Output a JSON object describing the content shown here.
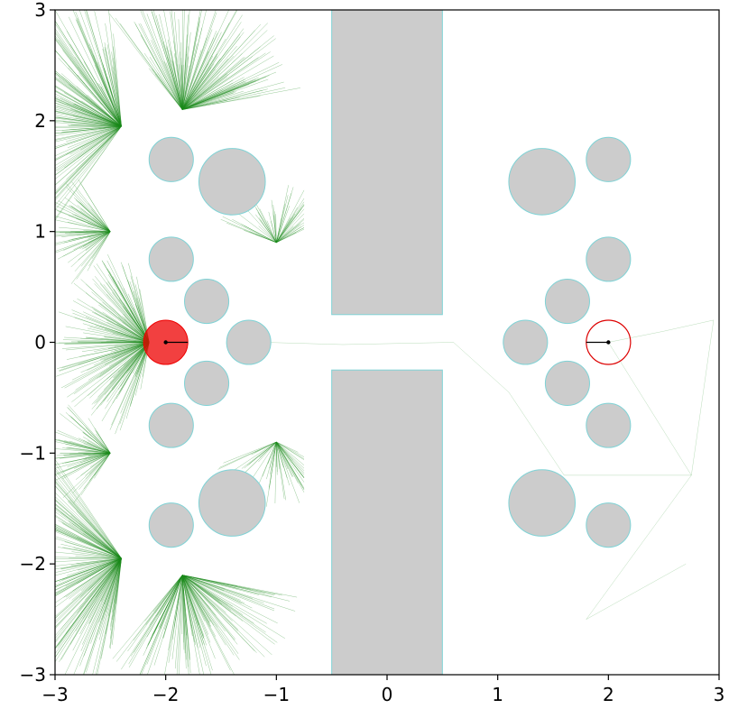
{
  "figure": {
    "type": "motion-planning-plot",
    "background": "#ffffff",
    "x_range": [
      -3,
      3
    ],
    "y_range": [
      -3,
      3
    ],
    "x_ticks": [
      "−3",
      "−2",
      "−1",
      "0",
      "1",
      "2",
      "3"
    ],
    "y_ticks": [
      "−3",
      "−2",
      "−1",
      "0",
      "1",
      "2",
      "3"
    ],
    "colors": {
      "obstacle_fill": "#cccccc",
      "obstacle_edge": "#7fd3d6",
      "tree": "#1a8a1a",
      "robot": "#ee0000",
      "goal": "#dd0000",
      "heading": "#000000"
    }
  },
  "chart_data": {
    "type": "scatter",
    "x_range": [
      -3,
      3
    ],
    "y_range": [
      -3,
      3
    ],
    "grid": false,
    "walls": [
      {
        "x0": -0.5,
        "x1": 0.5,
        "y0": 0.25,
        "y1": 3.0
      },
      {
        "x0": -0.5,
        "x1": 0.5,
        "y0": -3.0,
        "y1": -0.25
      }
    ],
    "circles": [
      {
        "x": -1.95,
        "y": 1.65,
        "r": 0.2
      },
      {
        "x": -1.4,
        "y": 1.45,
        "r": 0.3
      },
      {
        "x": -1.95,
        "y": 0.75,
        "r": 0.2
      },
      {
        "x": -1.63,
        "y": 0.37,
        "r": 0.2
      },
      {
        "x": -1.25,
        "y": 0.0,
        "r": 0.2
      },
      {
        "x": -1.63,
        "y": -0.37,
        "r": 0.2
      },
      {
        "x": -1.95,
        "y": -0.75,
        "r": 0.2
      },
      {
        "x": -1.4,
        "y": -1.45,
        "r": 0.3
      },
      {
        "x": -1.95,
        "y": -1.65,
        "r": 0.2
      },
      {
        "x": 1.4,
        "y": 1.45,
        "r": 0.3
      },
      {
        "x": 2.0,
        "y": 1.65,
        "r": 0.2
      },
      {
        "x": 2.0,
        "y": 0.75,
        "r": 0.2
      },
      {
        "x": 1.63,
        "y": 0.37,
        "r": 0.2
      },
      {
        "x": 1.25,
        "y": 0.0,
        "r": 0.2
      },
      {
        "x": 1.63,
        "y": -0.37,
        "r": 0.2
      },
      {
        "x": 2.0,
        "y": -0.75,
        "r": 0.2
      },
      {
        "x": 1.4,
        "y": -1.45,
        "r": 0.3
      },
      {
        "x": 2.0,
        "y": -1.65,
        "r": 0.2
      }
    ],
    "robot": {
      "x": -2.0,
      "y": 0.0,
      "r": 0.2,
      "heading_deg": 0
    },
    "goal": {
      "x": 2.0,
      "y": 0.0,
      "r": 0.2,
      "heading_deg": 180
    }
  }
}
